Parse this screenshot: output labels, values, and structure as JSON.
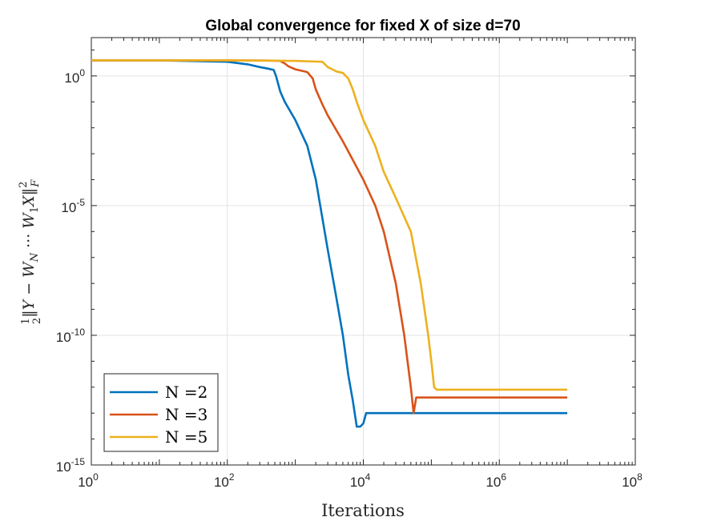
{
  "chart_data": {
    "type": "line",
    "title": "Global convergence for fixed X of size d=70",
    "xlabel": "Iterations",
    "ylabel": "½‖Y − W_N ··· W_1 X‖²_F",
    "xscale": "log",
    "yscale": "log",
    "xlim": [
      1,
      100000000
    ],
    "ylim": [
      1e-15,
      30
    ],
    "xtick_labels": [
      {
        "base": "10",
        "exp": "0"
      },
      {
        "base": "10",
        "exp": "2"
      },
      {
        "base": "10",
        "exp": "4"
      },
      {
        "base": "10",
        "exp": "6"
      },
      {
        "base": "10",
        "exp": "8"
      }
    ],
    "ytick_labels": [
      {
        "base": "10",
        "exp": "0"
      },
      {
        "base": "10",
        "exp": "-5"
      },
      {
        "base": "10",
        "exp": "-10"
      },
      {
        "base": "10",
        "exp": "-15"
      }
    ],
    "legend_position": "bottom-left",
    "series": [
      {
        "name": "N =2",
        "color": "#0072BD",
        "x": [
          1,
          10,
          100,
          200,
          300,
          400,
          480,
          520,
          600,
          700,
          1000,
          1500,
          2000,
          3000,
          4000,
          5000,
          6000,
          7000,
          8000,
          9000,
          10000,
          11000,
          20000,
          100000,
          1000000,
          10000000
        ],
        "y": [
          4,
          4,
          3.5,
          2.8,
          2.2,
          1.9,
          1.7,
          1.0,
          0.25,
          0.1,
          0.02,
          0.002,
          0.0001,
          2e-07,
          3e-09,
          1e-10,
          3e-12,
          3e-13,
          3e-14,
          3e-14,
          4e-14,
          1e-13,
          1e-13,
          1e-13,
          1e-13,
          1e-13
        ]
      },
      {
        "name": "N =3",
        "color": "#D95319",
        "x": [
          1,
          10,
          100,
          400,
          600,
          700,
          800,
          1000,
          1500,
          1800,
          2000,
          2500,
          3000,
          5000,
          8000,
          10000,
          15000,
          20000,
          30000,
          40000,
          50000,
          55000,
          60000,
          100000,
          1000000,
          10000000
        ],
        "y": [
          4,
          4,
          4,
          3.9,
          3.8,
          3.0,
          2.3,
          1.8,
          1.4,
          0.8,
          0.3,
          0.08,
          0.03,
          0.003,
          0.0003,
          0.0001,
          1e-05,
          1e-06,
          1e-08,
          1e-10,
          1e-12,
          1e-13,
          4e-13,
          4e-13,
          4e-13,
          4e-13
        ]
      },
      {
        "name": "N =5",
        "color": "#EDB120",
        "x": [
          1,
          10,
          100,
          1000,
          2500,
          3000,
          3500,
          4000,
          5000,
          6000,
          7000,
          8000,
          10000,
          15000,
          20000,
          30000,
          50000,
          70000,
          90000,
          100000,
          110000,
          120000,
          200000,
          1000000,
          10000000
        ],
        "y": [
          4,
          4,
          4,
          3.8,
          3.5,
          2.2,
          1.8,
          1.5,
          1.3,
          0.8,
          0.3,
          0.1,
          0.02,
          0.002,
          0.0002,
          2e-05,
          1e-06,
          1e-08,
          1e-10,
          1e-11,
          1e-12,
          8e-13,
          8e-13,
          8e-13,
          8e-13
        ]
      }
    ]
  }
}
